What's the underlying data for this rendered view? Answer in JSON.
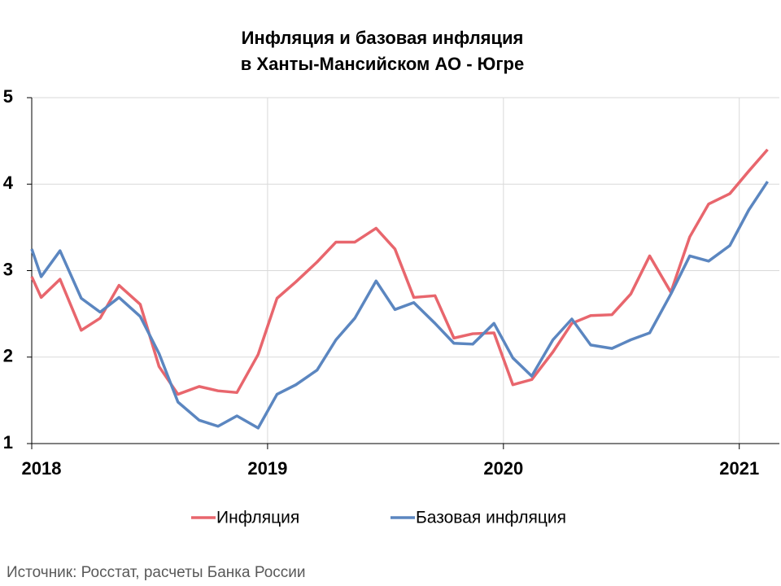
{
  "chart_data": {
    "type": "line",
    "title": [
      "Инфляция и базовая инфляция",
      "в  Ханты-Мансийском АО - Югре"
    ],
    "source": "Источник: Росстат, расчеты Банка России",
    "x": [
      2018.0,
      2018.04,
      2018.12,
      2018.21,
      2018.29,
      2018.37,
      2018.46,
      2018.54,
      2018.62,
      2018.71,
      2018.79,
      2018.87,
      2018.96,
      2019.04,
      2019.12,
      2019.21,
      2019.29,
      2019.37,
      2019.46,
      2019.54,
      2019.62,
      2019.71,
      2019.79,
      2019.87,
      2019.96,
      2020.04,
      2020.12,
      2020.21,
      2020.29,
      2020.37,
      2020.46,
      2020.54,
      2020.62,
      2020.71,
      2020.79,
      2020.87,
      2020.96,
      2021.04,
      2021.12
    ],
    "series": [
      {
        "name": "Инфляция",
        "color": "#e8666d",
        "values": [
          2.93,
          2.69,
          2.9,
          2.31,
          2.45,
          2.83,
          2.61,
          1.89,
          1.57,
          1.66,
          1.61,
          1.59,
          2.03,
          2.68,
          2.87,
          3.1,
          3.33,
          3.33,
          3.49,
          3.25,
          2.69,
          2.71,
          2.22,
          2.27,
          2.28,
          1.68,
          1.74,
          2.06,
          2.39,
          2.48,
          2.49,
          2.73,
          3.17,
          2.75,
          3.39,
          3.77,
          3.89,
          4.15,
          4.4
        ]
      },
      {
        "name": "Базовая инфляция",
        "color": "#5b86c0",
        "values": [
          3.25,
          2.93,
          3.23,
          2.68,
          2.52,
          2.69,
          2.47,
          2.04,
          1.48,
          1.27,
          1.2,
          1.32,
          1.18,
          1.57,
          1.68,
          1.85,
          2.2,
          2.45,
          2.88,
          2.55,
          2.63,
          2.39,
          2.16,
          2.15,
          2.39,
          1.99,
          1.78,
          2.2,
          2.44,
          2.14,
          2.1,
          2.2,
          2.28,
          2.73,
          3.17,
          3.11,
          3.29,
          3.7,
          4.03
        ]
      }
    ],
    "xlim": [
      2018,
      2021.17
    ],
    "xticks": [
      2018,
      2019,
      2020,
      2021
    ],
    "ylim": [
      1,
      5
    ],
    "yticks": [
      1,
      2,
      3,
      4,
      5
    ],
    "grid": true
  }
}
